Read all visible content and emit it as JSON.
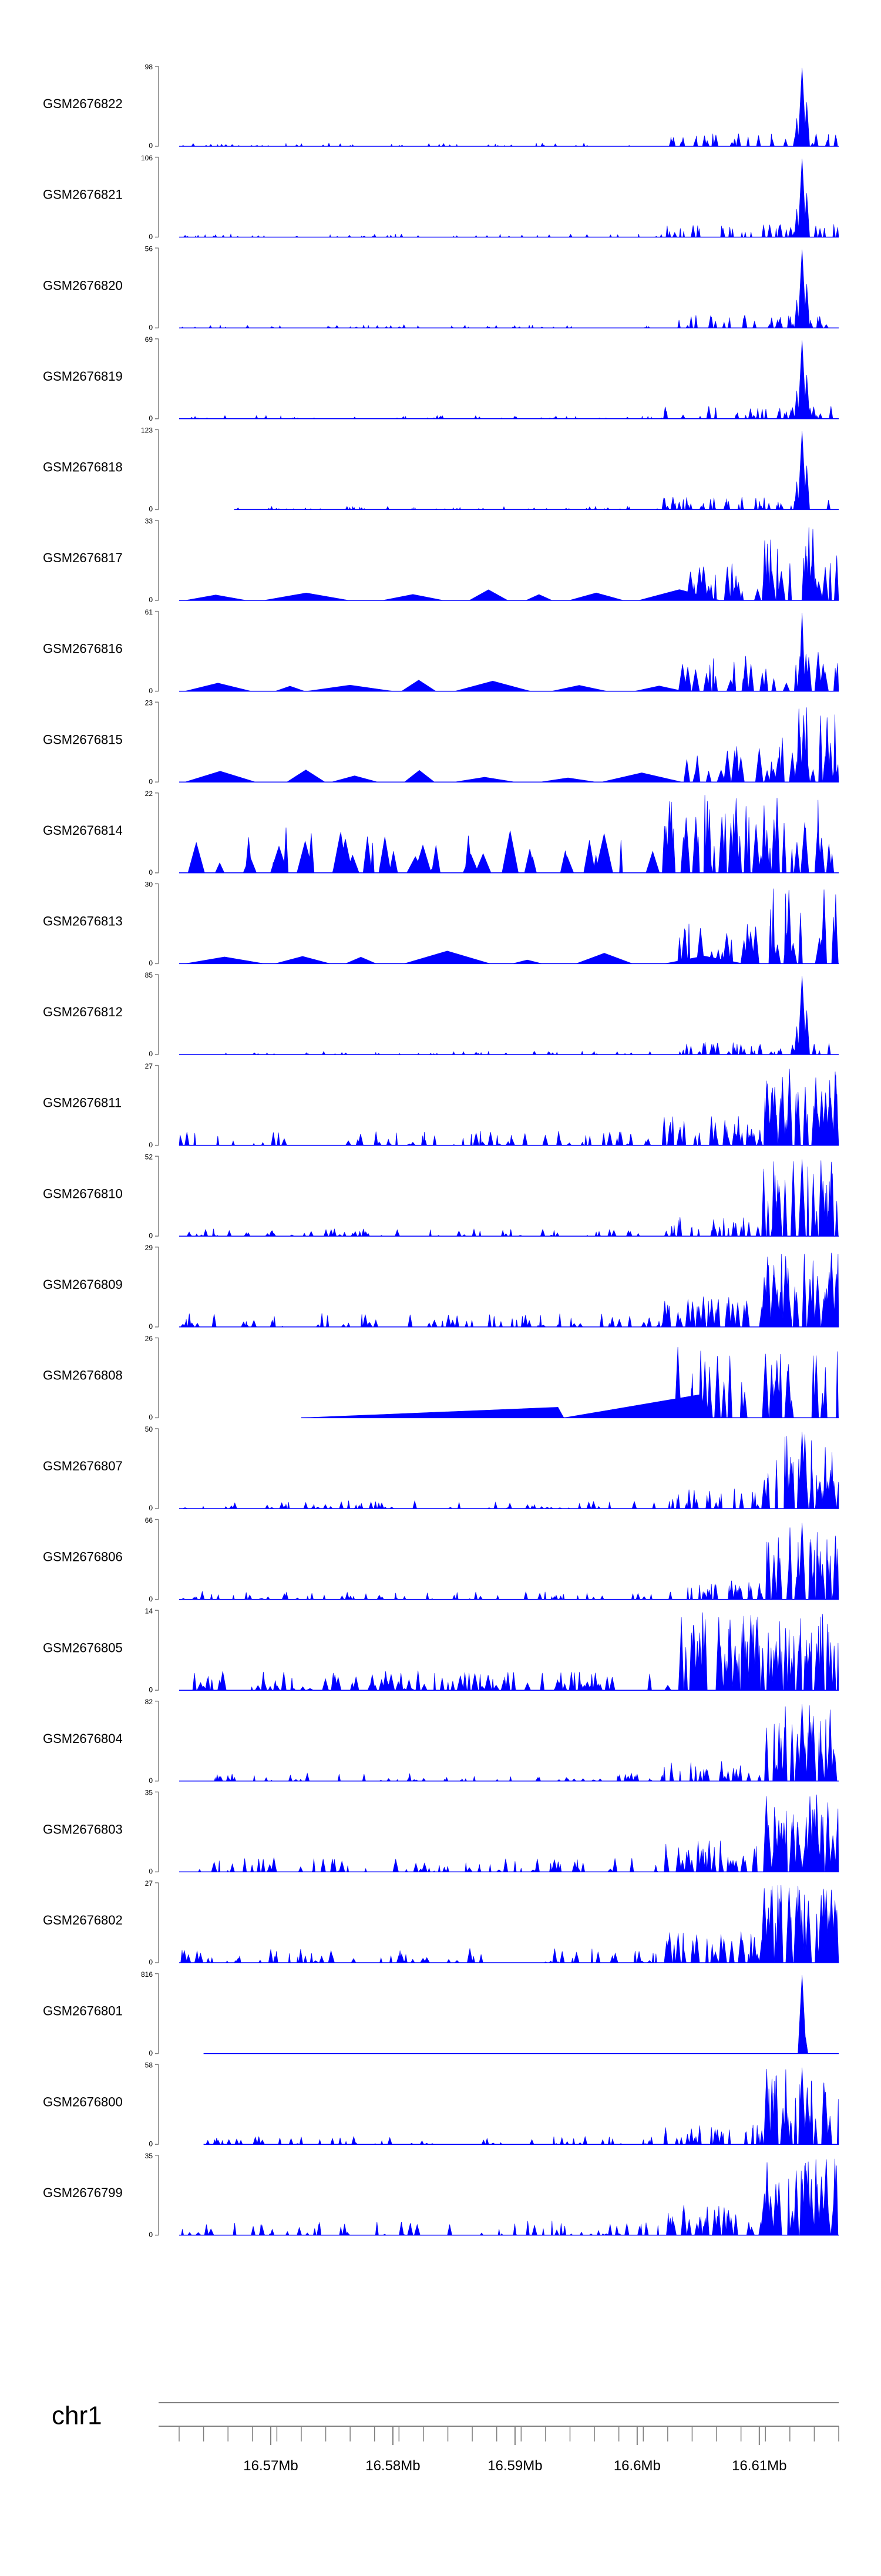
{
  "chart_data": {
    "type": "area",
    "title": "",
    "color": "#0000ff",
    "axis_color": "#808080",
    "x_range": [
      16.5625,
      16.6165
    ],
    "genomic_axis": {
      "chromosome": "chr1",
      "tick_values": [
        16.57,
        16.58,
        16.59,
        16.6,
        16.61
      ],
      "tick_labels": [
        "16.57Mb",
        "16.58Mb",
        "16.59Mb",
        "16.6Mb",
        "16.61Mb"
      ],
      "minor_tick_step": 0.002
    },
    "peak_position": 16.6135,
    "tracks": [
      {
        "name": "GSM2676822",
        "ymax": 98,
        "ymin_label": "0",
        "start": 16.5625,
        "profile": "peak"
      },
      {
        "name": "GSM2676821",
        "ymax": 106,
        "ymin_label": "0",
        "start": 16.5625,
        "profile": "peak"
      },
      {
        "name": "GSM2676820",
        "ymax": 56,
        "ymin_label": "0",
        "start": 16.5625,
        "profile": "peak"
      },
      {
        "name": "GSM2676819",
        "ymax": 69,
        "ymin_label": "0",
        "start": 16.5625,
        "profile": "peak"
      },
      {
        "name": "GSM2676818",
        "ymax": 123,
        "ymin_label": "0",
        "start": 16.567,
        "profile": "peak"
      },
      {
        "name": "GSM2676817",
        "ymax": 33,
        "ymin_label": "0",
        "start": 16.5625,
        "profile": "sparse"
      },
      {
        "name": "GSM2676816",
        "ymax": 61,
        "ymin_label": "0",
        "start": 16.5625,
        "profile": "sparse-peak"
      },
      {
        "name": "GSM2676815",
        "ymax": 23,
        "ymin_label": "0",
        "start": 16.5625,
        "profile": "sparse"
      },
      {
        "name": "GSM2676814",
        "ymax": 22,
        "ymin_label": "0",
        "start": 16.5625,
        "profile": "spiky"
      },
      {
        "name": "GSM2676813",
        "ymax": 30,
        "ymin_label": "0",
        "start": 16.5625,
        "profile": "sparse"
      },
      {
        "name": "GSM2676812",
        "ymax": 85,
        "ymin_label": "0",
        "start": 16.5625,
        "profile": "peak"
      },
      {
        "name": "GSM2676811",
        "ymax": 27,
        "ymin_label": "0",
        "start": 16.5625,
        "profile": "broad"
      },
      {
        "name": "GSM2676810",
        "ymax": 52,
        "ymin_label": "0",
        "start": 16.5625,
        "profile": "medium"
      },
      {
        "name": "GSM2676809",
        "ymax": 29,
        "ymin_label": "0",
        "start": 16.5625,
        "profile": "broad"
      },
      {
        "name": "GSM2676808",
        "ymax": 26,
        "ymin_label": "0",
        "start": 16.5725,
        "profile": "wedge"
      },
      {
        "name": "GSM2676807",
        "ymax": 50,
        "ymin_label": "0",
        "start": 16.5625,
        "profile": "medium"
      },
      {
        "name": "GSM2676806",
        "ymax": 66,
        "ymin_label": "0",
        "start": 16.5625,
        "profile": "medium"
      },
      {
        "name": "GSM2676805",
        "ymax": 14,
        "ymin_label": "0",
        "start": 16.5625,
        "profile": "dense"
      },
      {
        "name": "GSM2676804",
        "ymax": 82,
        "ymin_label": "0",
        "start": 16.5625,
        "profile": "medium"
      },
      {
        "name": "GSM2676803",
        "ymax": 35,
        "ymin_label": "0",
        "start": 16.5625,
        "profile": "broad"
      },
      {
        "name": "GSM2676802",
        "ymax": 27,
        "ymin_label": "0",
        "start": 16.5625,
        "profile": "broad"
      },
      {
        "name": "GSM2676801",
        "ymax": 816,
        "ymin_label": "0",
        "start": 16.5645,
        "profile": "single"
      },
      {
        "name": "GSM2676800",
        "ymax": 58,
        "ymin_label": "0",
        "start": 16.5645,
        "profile": "medium"
      },
      {
        "name": "GSM2676799",
        "ymax": 35,
        "ymin_label": "0",
        "start": 16.5625,
        "profile": "broad"
      }
    ]
  }
}
